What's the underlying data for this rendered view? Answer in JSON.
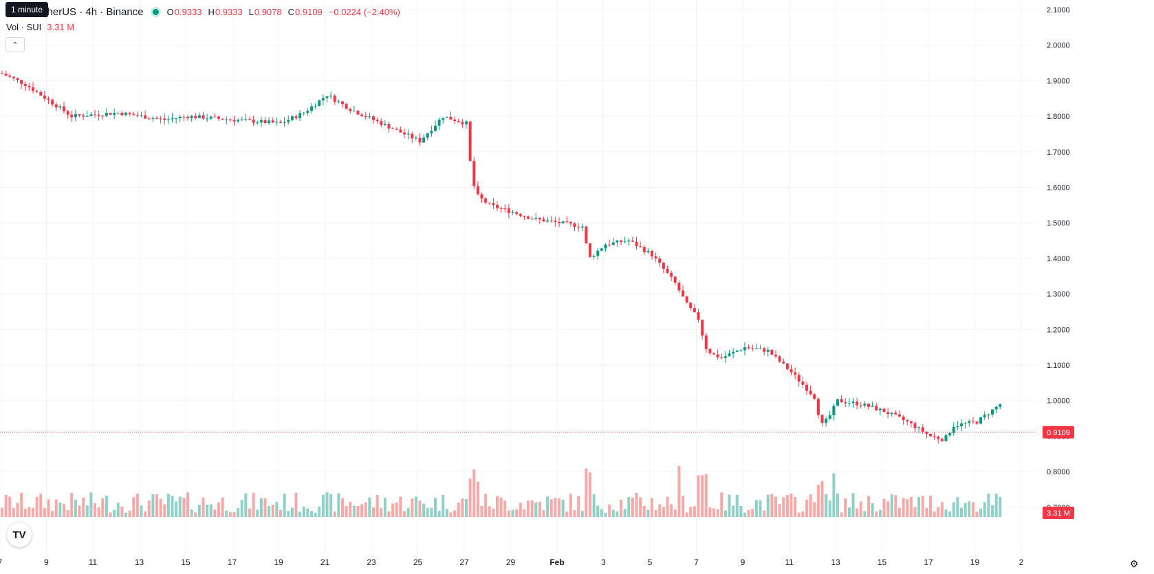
{
  "header": {
    "symbol": "etherUS · 4h · Binance",
    "tooltip": "1 minute",
    "ohlc": {
      "o_label": "O",
      "o": "0.9333",
      "h_label": "H",
      "h": "0.9333",
      "l_label": "L",
      "l": "0.9078",
      "c_label": "C",
      "c": "0.9109",
      "change": "−0.0224 (−2.40%)"
    },
    "volume_label": "Vol · SUI",
    "volume_value": "3.31 M"
  },
  "price_axis": {
    "ticks": [
      "2.1000",
      "2.0000",
      "1.9000",
      "1.8000",
      "1.7000",
      "1.6000",
      "1.5000",
      "1.4000",
      "1.3000",
      "1.2000",
      "1.1000",
      "1.0000",
      "0.9000",
      "0.8000",
      "0.7000"
    ],
    "last_price_badge": "0.9109",
    "volume_badge": "3.31 M"
  },
  "time_axis": {
    "ticks": [
      "7",
      "9",
      "11",
      "13",
      "15",
      "17",
      "19",
      "21",
      "23",
      "25",
      "27",
      "29",
      "Feb",
      "3",
      "5",
      "7",
      "9",
      "11",
      "13",
      "15",
      "17",
      "19",
      "2"
    ]
  },
  "colors": {
    "up": "#089981",
    "down": "#f23645",
    "up_vol": "#8fd1c7",
    "down_vol": "#f7a9a7",
    "grid": "#f0f3fa"
  },
  "icons": {
    "logo": "tradingview-logo-icon",
    "settings": "settings-icon",
    "collapse": "chevron-up-icon"
  },
  "chart_data": {
    "type": "candlestick",
    "timeframe": "4h",
    "ylim": [
      0.7,
      2.1
    ],
    "x_labels": [
      "7",
      "9",
      "11",
      "13",
      "15",
      "17",
      "19",
      "21",
      "23",
      "25",
      "27",
      "29",
      "Feb",
      "3",
      "5",
      "7",
      "9",
      "11",
      "13",
      "15",
      "17",
      "19"
    ],
    "close_path": [
      [
        0,
        1.92
      ],
      [
        1,
        1.89
      ],
      [
        3,
        1.8
      ],
      [
        5,
        1.81
      ],
      [
        7,
        1.79
      ],
      [
        8,
        1.8
      ],
      [
        10,
        1.79
      ],
      [
        12,
        1.78
      ],
      [
        13,
        1.81
      ],
      [
        14,
        1.86
      ],
      [
        15,
        1.82
      ],
      [
        16,
        1.79
      ],
      [
        17,
        1.76
      ],
      [
        18,
        1.73
      ],
      [
        19,
        1.8
      ],
      [
        20,
        1.78
      ],
      [
        20.2,
        1.65
      ],
      [
        20.4,
        1.58
      ],
      [
        21,
        1.55
      ],
      [
        22,
        1.53
      ],
      [
        23,
        1.51
      ],
      [
        24,
        1.5
      ],
      [
        25,
        1.49
      ],
      [
        25.3,
        1.4
      ],
      [
        26,
        1.44
      ],
      [
        27,
        1.45
      ],
      [
        28,
        1.41
      ],
      [
        29,
        1.33
      ],
      [
        29.5,
        1.27
      ],
      [
        30,
        1.23
      ],
      [
        30.3,
        1.15
      ],
      [
        30.6,
        1.13
      ],
      [
        31,
        1.12
      ],
      [
        32,
        1.15
      ],
      [
        33,
        1.14
      ],
      [
        34,
        1.08
      ],
      [
        35,
        1.01
      ],
      [
        35.3,
        0.93
      ],
      [
        35.6,
        0.95
      ],
      [
        36,
        1.0
      ],
      [
        37,
        0.99
      ],
      [
        38,
        0.97
      ],
      [
        39,
        0.94
      ],
      [
        40,
        0.9
      ],
      [
        40.6,
        0.89
      ],
      [
        41,
        0.93
      ],
      [
        42,
        0.94
      ],
      [
        43,
        0.99
      ],
      [
        44,
        1.04
      ],
      [
        44.3,
        0.98
      ],
      [
        45,
        0.96
      ],
      [
        46,
        0.97
      ],
      [
        47,
        0.95
      ],
      [
        47.4,
        0.93
      ],
      [
        47.6,
        0.911
      ]
    ],
    "last": {
      "open": 0.9333,
      "high": 0.9333,
      "low": 0.9078,
      "close": 0.9109,
      "change": -0.0224,
      "change_pct": -2.4
    },
    "volume_last": "3.31M"
  }
}
